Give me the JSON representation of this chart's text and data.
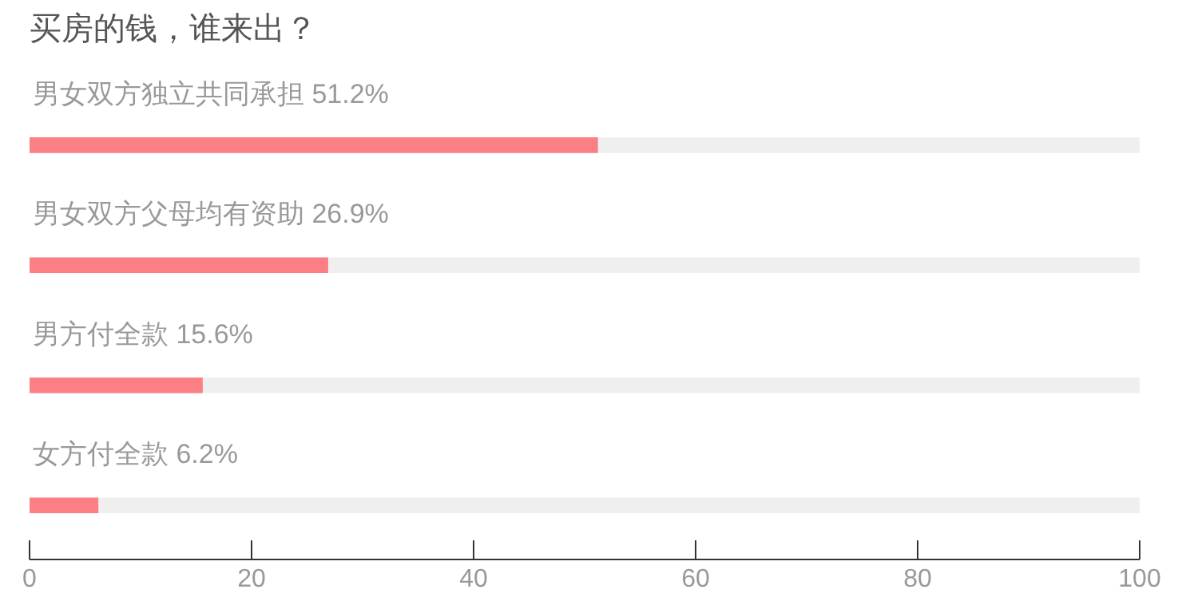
{
  "chart_data": {
    "type": "bar",
    "orientation": "horizontal",
    "title": "买房的钱，谁来出？",
    "categories": [
      "男女双方独立共同承担",
      "男女双方父母均有资助",
      "男方付全款",
      "女方付全款"
    ],
    "values": [
      51.2,
      26.9,
      15.6,
      6.2
    ],
    "value_labels": [
      "51.2%",
      "26.9%",
      "15.6%",
      "6.2%"
    ],
    "color": "#fc7f86",
    "xlim": [
      0,
      100
    ],
    "xticks": [
      0,
      20,
      40,
      60,
      80,
      100
    ],
    "grid": false
  }
}
